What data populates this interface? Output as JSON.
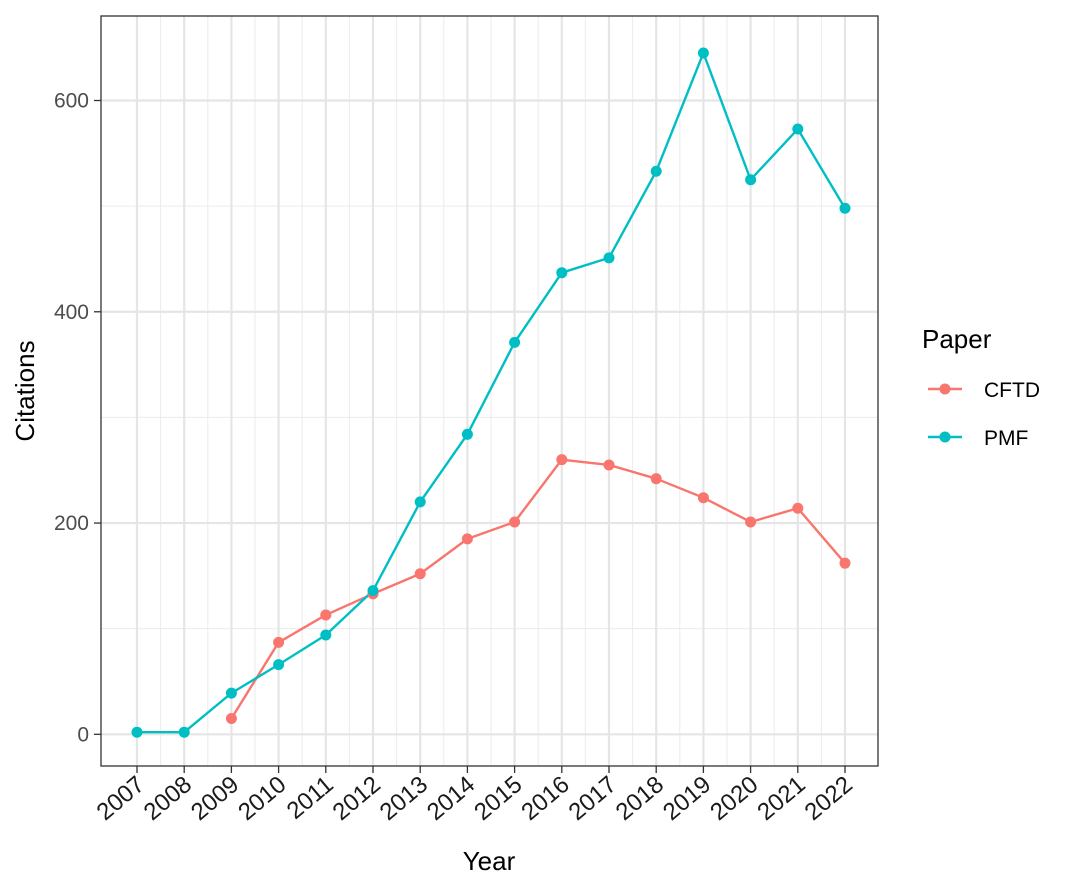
{
  "chart_data": {
    "type": "line",
    "title": "",
    "xlabel": "Year",
    "ylabel": "Citations",
    "x": [
      "2007",
      "2008",
      "2009",
      "2010",
      "2011",
      "2012",
      "2013",
      "2014",
      "2015",
      "2016",
      "2017",
      "2018",
      "2019",
      "2020",
      "2021",
      "2022"
    ],
    "ylim": [
      -30,
      680
    ],
    "yticks": [
      0,
      200,
      400,
      600
    ],
    "grid": true,
    "legend": {
      "title": "Paper",
      "placement": "right"
    },
    "series": [
      {
        "name": "CFTD",
        "color": "#F8766D",
        "values": [
          null,
          null,
          15,
          87,
          113,
          133,
          152,
          185,
          201,
          260,
          255,
          242,
          224,
          201,
          214,
          162
        ]
      },
      {
        "name": "PMF",
        "color": "#00BFC4",
        "values": [
          2,
          2,
          39,
          66,
          94,
          136,
          220,
          284,
          371,
          437,
          451,
          533,
          645,
          525,
          573,
          498
        ]
      }
    ]
  }
}
